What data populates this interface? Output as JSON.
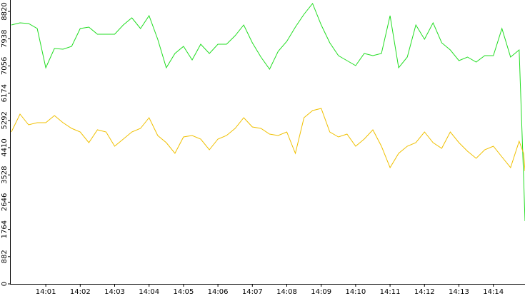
{
  "chart_data": {
    "type": "line",
    "x": [
      0,
      0.25,
      0.5,
      0.75,
      1,
      1.25,
      1.5,
      1.75,
      2,
      2.25,
      2.5,
      2.75,
      3,
      3.25,
      3.5,
      3.75,
      4,
      4.25,
      4.5,
      4.75,
      5,
      5.25,
      5.5,
      5.75,
      6,
      6.25,
      6.5,
      6.75,
      7,
      7.25,
      7.5,
      7.75,
      8,
      8.25,
      8.5,
      8.75,
      9,
      9.25,
      9.5,
      9.75,
      10,
      10.25,
      10.5,
      10.75,
      11,
      11.25,
      11.5,
      11.75,
      12,
      12.25,
      12.5,
      12.75,
      13,
      13.25,
      13.5,
      13.75,
      14,
      14.25,
      14.5,
      14.75,
      14.88,
      14.92
    ],
    "series": [
      {
        "color": "#22dd22",
        "values": [
          8382,
          8451,
          8428,
          8266,
          6996,
          7620,
          7597,
          7689,
          8266,
          8312,
          8081,
          8081,
          8081,
          8382,
          8613,
          8266,
          8682,
          7920,
          6996,
          7458,
          7689,
          7250,
          7758,
          7458,
          7758,
          7758,
          8035,
          8382,
          7804,
          7343,
          6950,
          7527,
          7851,
          8312,
          8728,
          9074,
          8382,
          7804,
          7389,
          7227,
          7065,
          7458,
          7389,
          7458,
          8682,
          6996,
          7343,
          8382,
          7920,
          8451,
          7804,
          7574,
          7227,
          7343,
          7181,
          7389,
          7389,
          8266,
          7343,
          7574,
          3417,
          2032
        ]
      },
      {
        "color": "#f0c000",
        "values": [
          4918,
          5495,
          5149,
          5218,
          5218,
          5449,
          5218,
          5034,
          4918,
          4572,
          4987,
          4918,
          4456,
          4687,
          4918,
          5034,
          5380,
          4803,
          4572,
          4225,
          4757,
          4803,
          4687,
          4341,
          4687,
          4803,
          5034,
          5380,
          5080,
          5034,
          4849,
          4803,
          4918,
          4225,
          5380,
          5611,
          5680,
          4918,
          4757,
          4849,
          4456,
          4687,
          4987,
          4456,
          3764,
          4225,
          4456,
          4572,
          4918,
          4572,
          4387,
          4918,
          4572,
          4295,
          4064,
          4341,
          4456,
          4110,
          3764,
          4618,
          4225,
          3648
        ]
      }
    ],
    "xlim": [
      -0.04,
      14.92
    ],
    "xticks": [
      {
        "value": 1,
        "label": "14:01"
      },
      {
        "value": 2,
        "label": "14:02"
      },
      {
        "value": 3,
        "label": "14:03"
      },
      {
        "value": 4,
        "label": "14:04"
      },
      {
        "value": 5,
        "label": "14:05"
      },
      {
        "value": 6,
        "label": "14:06"
      },
      {
        "value": 7,
        "label": "14:07"
      },
      {
        "value": 8,
        "label": "14:08"
      },
      {
        "value": 9,
        "label": "14:09"
      },
      {
        "value": 10,
        "label": "14:10"
      },
      {
        "value": 11,
        "label": "14:11"
      },
      {
        "value": 12,
        "label": "14:12"
      },
      {
        "value": 13,
        "label": "14:13"
      },
      {
        "value": 14,
        "label": "14:14"
      }
    ],
    "ylim": [
      0,
      9190
    ],
    "yticks": [
      0,
      882,
      1764,
      2646,
      3528,
      4410,
      5292,
      6174,
      7056,
      7938,
      8820
    ]
  }
}
